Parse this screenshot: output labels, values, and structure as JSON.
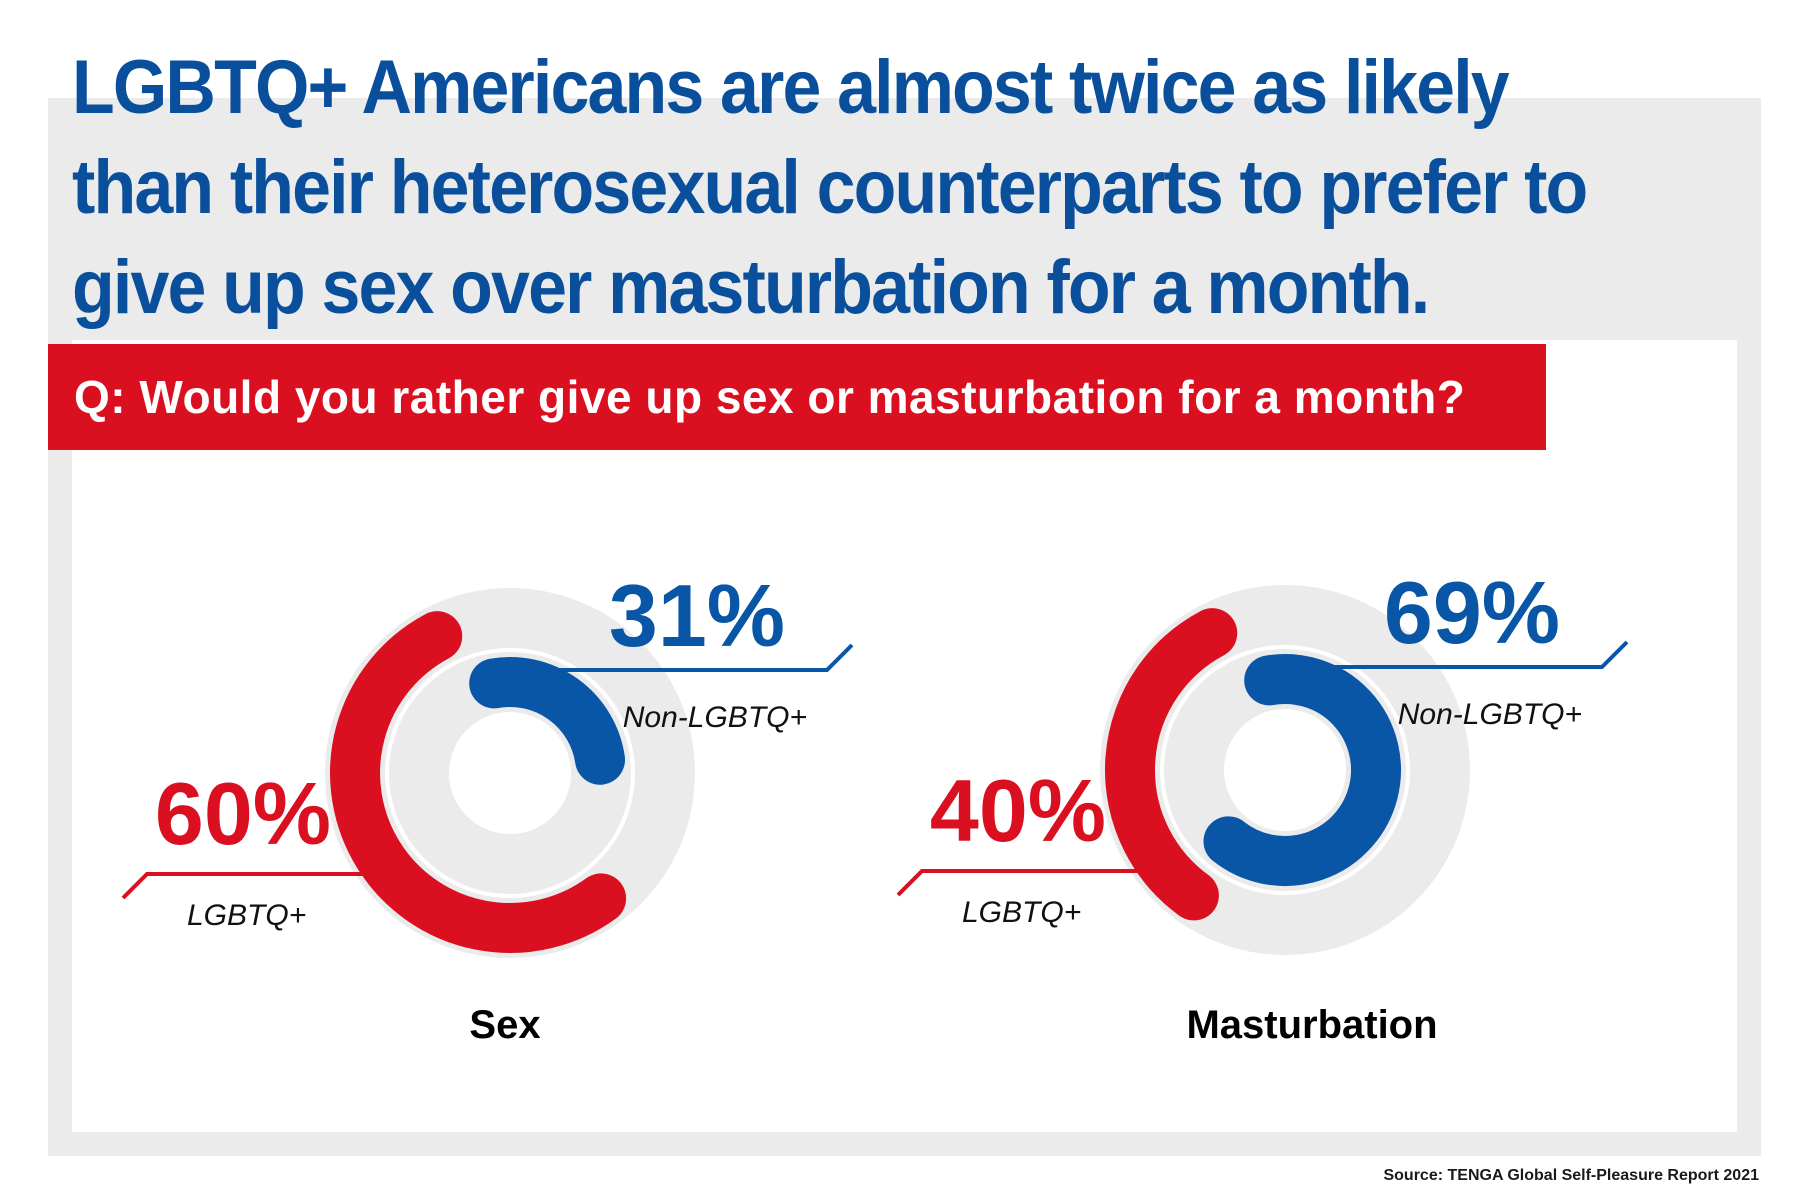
{
  "headline": "LGBTQ+ Americans are almost twice as likely than their heterosexual counterparts to prefer to give up sex over masturbation for a month.",
  "question": "Q: Would you rather give up sex or masturbation for a month?",
  "source": "Source: TENGA Global Self-Pleasure Report 2021",
  "colors": {
    "lgbtq": "#da1021",
    "non_lgbtq": "#0a56a6",
    "track": "#ebebeb",
    "headline": "#0a4f9c"
  },
  "chart_data": [
    {
      "type": "pie",
      "style": "donut",
      "title": "Sex",
      "series": [
        {
          "name": "LGBTQ+",
          "value": 60,
          "label": "60%"
        },
        {
          "name": "Non-LGBTQ+",
          "value": 31,
          "label": "31%"
        }
      ]
    },
    {
      "type": "pie",
      "style": "donut",
      "title": "Masturbation",
      "series": [
        {
          "name": "LGBTQ+",
          "value": 40,
          "label": "40%"
        },
        {
          "name": "Non-LGBTQ+",
          "value": 69,
          "label": "69%"
        }
      ]
    }
  ]
}
